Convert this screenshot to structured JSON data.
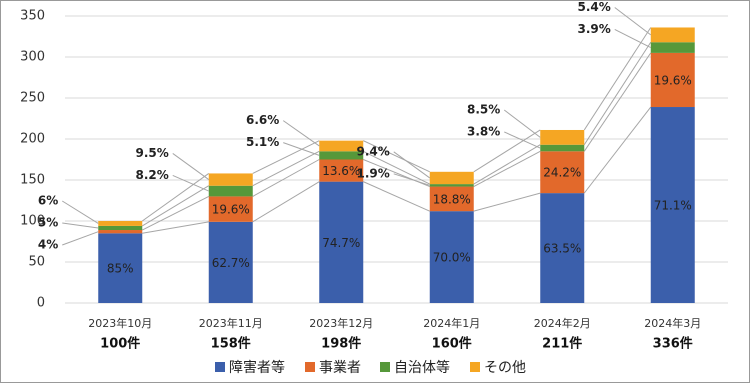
{
  "chart_data": {
    "type": "stacked_bar",
    "categories": [
      "2023年10月",
      "2023年11月",
      "2023年12月",
      "2024年1月",
      "2024年2月",
      "2024年3月"
    ],
    "totals": [
      {
        "value": 100,
        "label": "100件"
      },
      {
        "value": 158,
        "label": "158件"
      },
      {
        "value": 198,
        "label": "198件"
      },
      {
        "value": 160,
        "label": "160件"
      },
      {
        "value": 211,
        "label": "211件"
      },
      {
        "value": 336,
        "label": "336件"
      }
    ],
    "series": [
      {
        "name": "障害者等",
        "color": "#3b5fab",
        "values": [
          85,
          99,
          148,
          112,
          134,
          239
        ],
        "shares": [
          {
            "value": 85,
            "label": "85%"
          },
          {
            "value": 62.7,
            "label": "62.7%"
          },
          {
            "value": 74.7,
            "label": "74.7%"
          },
          {
            "value": 70.0,
            "label": "70.0%"
          },
          {
            "value": 63.5,
            "label": "63.5%"
          },
          {
            "value": 71.1,
            "label": "71.1%"
          }
        ]
      },
      {
        "name": "事業者",
        "color": "#e2692b",
        "values": [
          4,
          31,
          27,
          30,
          51,
          66
        ],
        "shares": [
          {
            "value": 4,
            "label": "4%"
          },
          {
            "value": 19.6,
            "label": "19.6%"
          },
          {
            "value": 13.6,
            "label": "13.6%"
          },
          {
            "value": 18.8,
            "label": "18.8%"
          },
          {
            "value": 24.2,
            "label": "24.2%"
          },
          {
            "value": 19.6,
            "label": "19.6%"
          }
        ]
      },
      {
        "name": "自治体等",
        "color": "#56983a",
        "values": [
          5,
          13,
          10,
          3,
          8,
          13
        ],
        "shares": [
          {
            "value": 5,
            "label": "5%"
          },
          {
            "value": 8.2,
            "label": "8.2%"
          },
          {
            "value": 5.1,
            "label": "5.1%"
          },
          {
            "value": 1.9,
            "label": "1.9%"
          },
          {
            "value": 3.8,
            "label": "3.8%"
          },
          {
            "value": 3.9,
            "label": "3.9%"
          }
        ]
      },
      {
        "name": "その他",
        "color": "#f5a623",
        "values": [
          6,
          15,
          13,
          15,
          18,
          18
        ],
        "shares": [
          {
            "value": 6,
            "label": "6%"
          },
          {
            "value": 9.5,
            "label": "9.5%"
          },
          {
            "value": 6.6,
            "label": "6.6%"
          },
          {
            "value": 9.4,
            "label": "9.4%"
          },
          {
            "value": 8.5,
            "label": "8.5%"
          },
          {
            "value": 5.4,
            "label": "5.4%"
          }
        ]
      }
    ],
    "ylim": [
      0,
      350
    ],
    "yticks": [
      0,
      50,
      100,
      150,
      200,
      250,
      300,
      350
    ],
    "grid": true,
    "legend": "bottom"
  }
}
